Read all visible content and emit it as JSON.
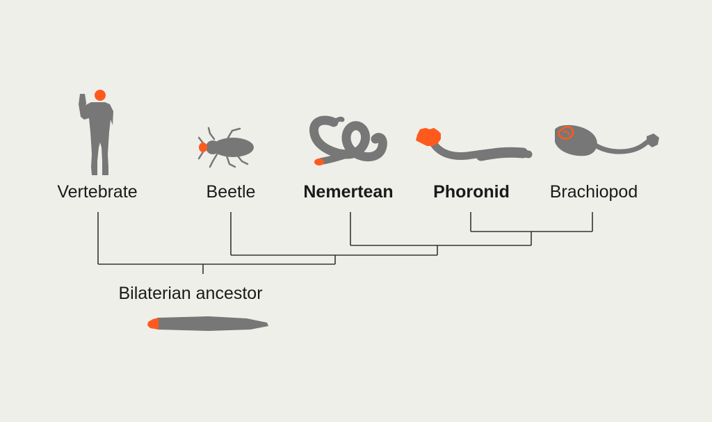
{
  "colors": {
    "background": "#efefea",
    "silhouette": "#777777",
    "highlight": "#ff5a1e",
    "line": "#333333",
    "text": "#1a1a1a"
  },
  "taxa": [
    {
      "id": "vertebrate",
      "label": "Vertebrate",
      "bold": false,
      "icon": "human-silhouette-icon"
    },
    {
      "id": "beetle",
      "label": "Beetle",
      "bold": false,
      "icon": "beetle-silhouette-icon"
    },
    {
      "id": "nemertean",
      "label": "Nemertean",
      "bold": true,
      "icon": "nemertean-worm-icon"
    },
    {
      "id": "phoronid",
      "label": "Phoronid",
      "bold": true,
      "icon": "phoronid-worm-icon"
    },
    {
      "id": "brachiopod",
      "label": "Brachiopod",
      "bold": false,
      "icon": "brachiopod-icon"
    }
  ],
  "ancestor": {
    "label": "Bilaterian ancestor",
    "icon": "ancestor-worm-icon"
  },
  "tree": [
    "((((Phoronid,Brachiopod),Nemertean),Beetle),Vertebrate)"
  ]
}
